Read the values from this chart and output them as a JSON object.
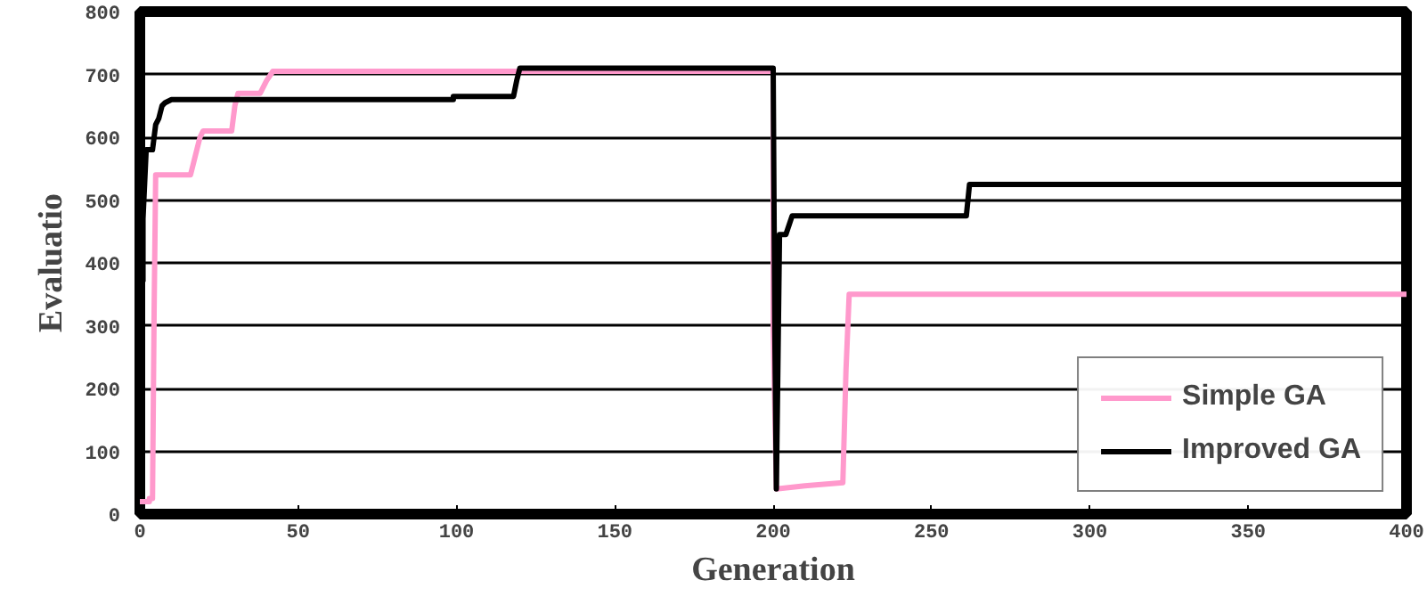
{
  "chart_data": {
    "type": "line",
    "xlabel": "Generation",
    "ylabel": "Evaluatio",
    "xlim": [
      0,
      400
    ],
    "ylim": [
      0,
      800
    ],
    "xticks": [
      0,
      50,
      100,
      150,
      200,
      250,
      300,
      350,
      400
    ],
    "yticks": [
      0,
      100,
      200,
      300,
      400,
      500,
      600,
      700,
      800
    ],
    "grid": "y",
    "legend": "bottom right",
    "marker": "none",
    "line_style": "solid",
    "series": [
      {
        "name": "Simple GA",
        "color": "#ff99cc",
        "x": [
          0,
          3,
          3,
          4,
          4.5,
          5,
          16,
          17,
          18,
          19,
          20,
          29,
          30,
          31,
          38,
          40,
          42,
          200,
          200,
          201,
          210,
          222,
          223,
          224,
          400
        ],
        "values": [
          20,
          20,
          25,
          25,
          320,
          540,
          540,
          560,
          580,
          600,
          610,
          610,
          650,
          670,
          670,
          690,
          705,
          705,
          300,
          40,
          45,
          50,
          230,
          350,
          350
        ]
      },
      {
        "name": "Improved GA",
        "color": "#000000",
        "x": [
          1,
          1,
          2,
          4,
          5,
          6,
          7,
          8,
          10,
          12,
          99,
          99,
          118,
          119,
          120,
          200,
          200.5,
          201,
          201.5,
          202,
          204,
          205,
          206,
          261,
          262,
          400
        ],
        "values": [
          370,
          470,
          580,
          580,
          620,
          630,
          650,
          655,
          660,
          660,
          660,
          665,
          665,
          690,
          710,
          710,
          300,
          40,
          240,
          445,
          445,
          460,
          475,
          475,
          525,
          525
        ]
      }
    ]
  }
}
